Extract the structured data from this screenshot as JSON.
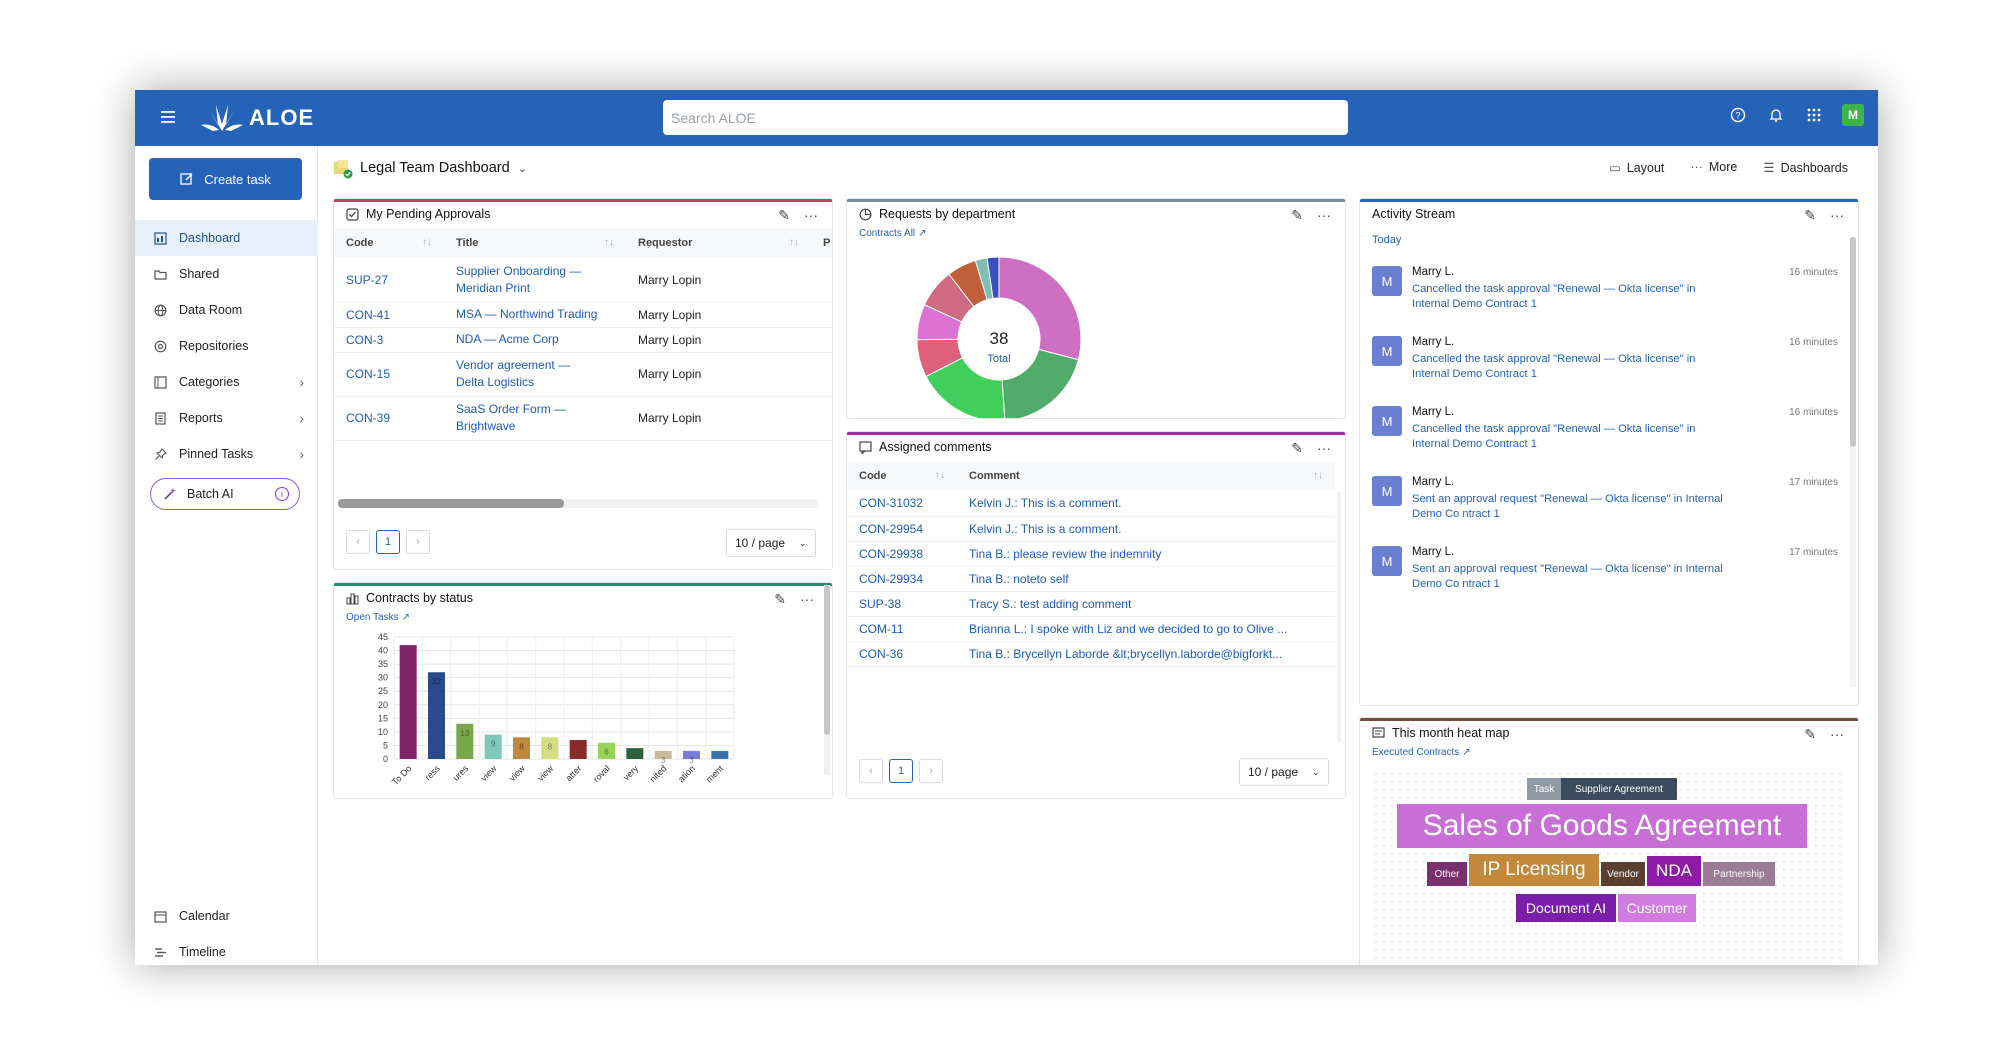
{
  "app": {
    "logo_text": "ALOE",
    "search_placeholder": "Search ALOE",
    "user_initial": "M"
  },
  "sidebar": {
    "create_label": "Create task",
    "items": [
      {
        "label": "Dashboard",
        "icon": "dashboard-icon",
        "active": true
      },
      {
        "label": "Shared",
        "icon": "shared-folder-icon"
      },
      {
        "label": "Data Room",
        "icon": "globe-icon"
      },
      {
        "label": "Repositories",
        "icon": "repository-icon"
      },
      {
        "label": "Categories",
        "icon": "categories-icon",
        "chevron": true
      },
      {
        "label": "Reports",
        "icon": "reports-icon",
        "chevron": true
      },
      {
        "label": "Pinned Tasks",
        "icon": "pin-icon",
        "chevron": true
      }
    ],
    "batch_label": "Batch AI",
    "bottom": [
      {
        "label": "Calendar",
        "icon": "calendar-icon"
      },
      {
        "label": "Timeline",
        "icon": "timeline-icon"
      }
    ]
  },
  "header": {
    "title": "Legal Team Dashboard",
    "layout_label": "Layout",
    "more_label": "More",
    "dashboards_label": "Dashboards"
  },
  "approvals": {
    "title": "My Pending Approvals",
    "accent": "#d9325c",
    "columns": [
      "Code",
      "Title",
      "Requestor",
      "P"
    ],
    "rows": [
      {
        "code": "SUP-27",
        "title": [
          "Supplier Onboarding —",
          "Meridian Print"
        ],
        "requestor": "Marry Lopin"
      },
      {
        "code": "CON-41",
        "title": [
          "MSA — Northwind Trading"
        ],
        "requestor": "Marry Lopin"
      },
      {
        "code": "CON-3",
        "title": [
          "NDA — Acme Corp"
        ],
        "requestor": "Marry Lopin"
      },
      {
        "code": "CON-15",
        "title": [
          "Vendor agreement —",
          "Delta Logistics"
        ],
        "requestor": "Marry Lopin"
      },
      {
        "code": "CON-39",
        "title": [
          "SaaS Order Form —",
          "Brightwave"
        ],
        "requestor": "Marry Lopin"
      }
    ],
    "page": "1",
    "per_page": "10 / page"
  },
  "requests": {
    "title": "Requests by department",
    "accent": "#7a8a99",
    "link": "Contracts All",
    "center_value": "38",
    "center_label": "Total"
  },
  "donut_colors": [
    "#cf6fc4",
    "#4fac6a",
    "#3fcf5a",
    "#e0607a",
    "#dc73d2",
    "#cf6a80",
    "#c0603a",
    "#7fbfb0",
    "#3a4fc0"
  ],
  "donut_values": [
    12.5,
    8.5,
    8,
    3.2,
    3,
    3.3,
    2.5,
    1,
    1
  ],
  "comments": {
    "title": "Assigned comments",
    "accent": "#a52a9f",
    "columns": [
      "Code",
      "Comment"
    ],
    "rows": [
      {
        "code": "CON-31032",
        "comment": "Kelvin J.: This is a comment."
      },
      {
        "code": "CON-29954",
        "comment": "Kelvin J.: This is a comment."
      },
      {
        "code": "CON-29938",
        "comment": "Tina B.: please review the indemnity"
      },
      {
        "code": "CON-29934",
        "comment": "Tina B.: noteto self"
      },
      {
        "code": "SUP-38",
        "comment": "Tracy S.: test adding comment"
      },
      {
        "code": "COM-11",
        "comment": "Brianna L.: I spoke with Liz and we decided to go to Olive ..."
      },
      {
        "code": "CON-36",
        "comment": "Tina B.: Brycellyn Laborde &lt;brycellyn.laborde@bigforkt..."
      }
    ],
    "page": "1",
    "per_page": "10 / page"
  },
  "contracts": {
    "title": "Contracts by status",
    "accent": "#2b8a74",
    "link": "Open Tasks"
  },
  "chart_data": {
    "type": "bar",
    "categories": [
      "To Do",
      "ress",
      "ures",
      "view",
      "view",
      "view",
      "atter",
      "roval",
      "very",
      "nited",
      "ation",
      "ment"
    ],
    "values": [
      42,
      32,
      13,
      9,
      8,
      8,
      7,
      6,
      4,
      3,
      3,
      3
    ],
    "data_labels": [
      "",
      "32",
      "13",
      "9",
      "8",
      "8",
      "",
      "6",
      "",
      "3",
      "3",
      ""
    ],
    "colors": [
      "#7e2466",
      "#2a4a8c",
      "#79a84b",
      "#7fc7b9",
      "#c08a3e",
      "#d7dd7f",
      "#8b2a2a",
      "#9bd25a",
      "#2f5f3a",
      "#c8bb9b",
      "#7c7cd9",
      "#3d73a8"
    ],
    "ylim": [
      0,
      45
    ],
    "yticks": [
      0,
      5,
      10,
      15,
      20,
      25,
      30,
      35,
      40,
      45
    ],
    "grid": true
  },
  "activity": {
    "title": "Activity Stream",
    "accent": "#2563b8",
    "group": "Today",
    "items": [
      {
        "initial": "M",
        "name": "Marry L.",
        "time": "16 minutes",
        "text": "Cancelled the task approval \"Renewal — Okta license\" in Internal Demo Contract 1"
      },
      {
        "initial": "M",
        "name": "Marry L.",
        "time": "16 minutes",
        "text": "Cancelled the task approval \"Renewal — Okta license\" in Internal Demo Contract 1"
      },
      {
        "initial": "M",
        "name": "Marry L.",
        "time": "16 minutes",
        "text": "Cancelled the task approval \"Renewal — Okta license\" in Internal Demo Contract 1"
      },
      {
        "initial": "M",
        "name": "Marry L.",
        "time": "17 minutes",
        "text": "Sent an approval request \"Renewal — Okta license\" in Internal Demo Co ntract 1"
      },
      {
        "initial": "M",
        "name": "Marry L.",
        "time": "17 minutes",
        "text": "Sent an approval request \"Renewal — Okta license\" in Internal Demo Co ntract 1"
      }
    ]
  },
  "heatmap": {
    "title": "This month heat map",
    "accent": "#7a4a3a",
    "link": "Executed Contracts",
    "tags": [
      {
        "text": "Task",
        "color": "#8f9aa6"
      },
      {
        "text": "Supplier Agreement",
        "color": "#3b4a5c"
      },
      {
        "text": "Sales of Goods Agreement",
        "color": "#c86fd6"
      },
      {
        "text": "Other",
        "color": "#7a2f6e"
      },
      {
        "text": "IP Licensing",
        "color": "#c4883b"
      },
      {
        "text": "Vendor",
        "color": "#5b3f2f"
      },
      {
        "text": "NDA",
        "color": "#8e1aa8"
      },
      {
        "text": "Partnership",
        "color": "#9c7c94"
      },
      {
        "text": "Document AI",
        "color": "#7a1faa"
      },
      {
        "text": "Customer",
        "color": "#d17ae0"
      }
    ]
  }
}
